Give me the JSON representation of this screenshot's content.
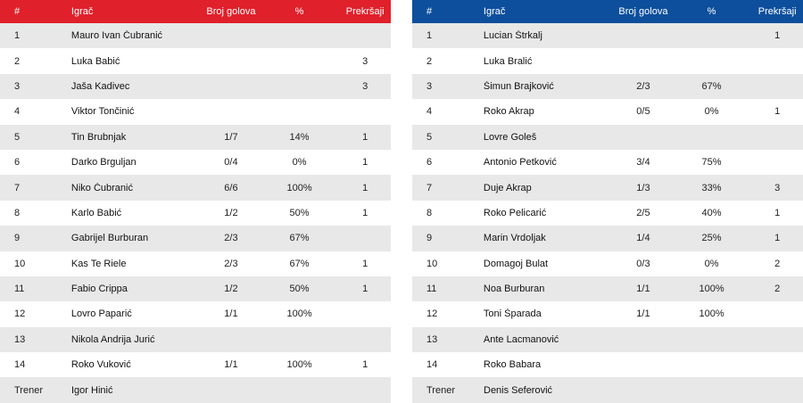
{
  "tables": [
    {
      "side": "home",
      "color": "#e0202b",
      "headers": {
        "num": "#",
        "name": "Igrač",
        "goals": "Broj golova",
        "pct": "%",
        "fouls": "Prekršaji"
      },
      "rows": [
        {
          "num": "1",
          "name": "Mauro Ivan Čubranić",
          "goals": "",
          "pct": "",
          "fouls": ""
        },
        {
          "num": "2",
          "name": "Luka Babić",
          "goals": "",
          "pct": "",
          "fouls": "3"
        },
        {
          "num": "3",
          "name": "Jaša Kadivec",
          "goals": "",
          "pct": "",
          "fouls": "3"
        },
        {
          "num": "4",
          "name": "Viktor Tončinić",
          "goals": "",
          "pct": "",
          "fouls": ""
        },
        {
          "num": "5",
          "name": "Tin Brubnjak",
          "goals": "1/7",
          "pct": "14%",
          "fouls": "1"
        },
        {
          "num": "6",
          "name": "Darko Brguljan",
          "goals": "0/4",
          "pct": "0%",
          "fouls": "1"
        },
        {
          "num": "7",
          "name": "Niko Čubranić",
          "goals": "6/6",
          "pct": "100%",
          "fouls": "1"
        },
        {
          "num": "8",
          "name": "Karlo Babić",
          "goals": "1/2",
          "pct": "50%",
          "fouls": "1"
        },
        {
          "num": "9",
          "name": "Gabrijel Burburan",
          "goals": "2/3",
          "pct": "67%",
          "fouls": ""
        },
        {
          "num": "10",
          "name": "Kas Te Riele",
          "goals": "2/3",
          "pct": "67%",
          "fouls": "1"
        },
        {
          "num": "11",
          "name": "Fabio Crippa",
          "goals": "1/2",
          "pct": "50%",
          "fouls": "1"
        },
        {
          "num": "12",
          "name": "Lovro Paparić",
          "goals": "1/1",
          "pct": "100%",
          "fouls": ""
        },
        {
          "num": "13",
          "name": "Nikola Andrija Jurić",
          "goals": "",
          "pct": "",
          "fouls": ""
        },
        {
          "num": "14",
          "name": "Roko Vuković",
          "goals": "1/1",
          "pct": "100%",
          "fouls": "1"
        }
      ],
      "coach": {
        "label": "Trener",
        "name": "Igor Hinić"
      }
    },
    {
      "side": "away",
      "color": "#0d4f9c",
      "headers": {
        "num": "#",
        "name": "Igrač",
        "goals": "Broj golova",
        "pct": "%",
        "fouls": "Prekršaji"
      },
      "rows": [
        {
          "num": "1",
          "name": "Lucian Štrkalj",
          "goals": "",
          "pct": "",
          "fouls": "1"
        },
        {
          "num": "2",
          "name": "Luka Bralić",
          "goals": "",
          "pct": "",
          "fouls": ""
        },
        {
          "num": "3",
          "name": "Šimun Brajković",
          "goals": "2/3",
          "pct": "67%",
          "fouls": ""
        },
        {
          "num": "4",
          "name": "Roko Akrap",
          "goals": "0/5",
          "pct": "0%",
          "fouls": "1"
        },
        {
          "num": "5",
          "name": "Lovre Goleš",
          "goals": "",
          "pct": "",
          "fouls": ""
        },
        {
          "num": "6",
          "name": "Antonio Petković",
          "goals": "3/4",
          "pct": "75%",
          "fouls": ""
        },
        {
          "num": "7",
          "name": "Duje Akrap",
          "goals": "1/3",
          "pct": "33%",
          "fouls": "3"
        },
        {
          "num": "8",
          "name": "Roko Pelicarić",
          "goals": "2/5",
          "pct": "40%",
          "fouls": "1"
        },
        {
          "num": "9",
          "name": "Marin Vrdoljak",
          "goals": "1/4",
          "pct": "25%",
          "fouls": "1"
        },
        {
          "num": "10",
          "name": "Domagoj Bulat",
          "goals": "0/3",
          "pct": "0%",
          "fouls": "2"
        },
        {
          "num": "11",
          "name": "Noa Burburan",
          "goals": "1/1",
          "pct": "100%",
          "fouls": "2"
        },
        {
          "num": "12",
          "name": "Toni Šparada",
          "goals": "1/1",
          "pct": "100%",
          "fouls": ""
        },
        {
          "num": "13",
          "name": "Ante Lacmanović",
          "goals": "",
          "pct": "",
          "fouls": ""
        },
        {
          "num": "14",
          "name": "Roko Babara",
          "goals": "",
          "pct": "",
          "fouls": ""
        }
      ],
      "coach": {
        "label": "Trener",
        "name": "Denis Seferović"
      }
    }
  ]
}
